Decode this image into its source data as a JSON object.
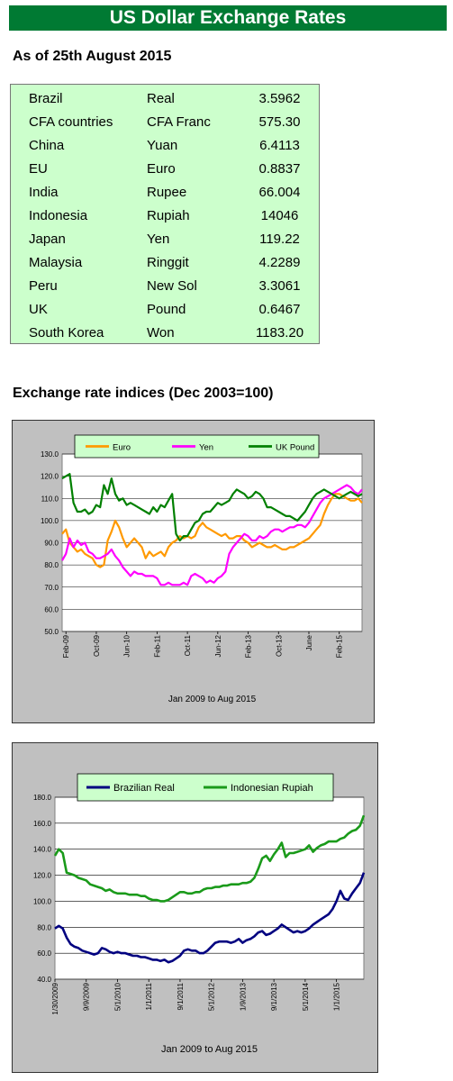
{
  "header": {
    "title": "US Dollar Exchange Rates",
    "as_of": "As of 25th August 2015"
  },
  "rates": [
    {
      "country": "Brazil",
      "currency": "Real",
      "rate": "3.5962"
    },
    {
      "country": "CFA countries",
      "currency": "CFA Franc",
      "rate": "575.30"
    },
    {
      "country": "China",
      "currency": "Yuan",
      "rate": "6.4113"
    },
    {
      "country": "EU",
      "currency": "Euro",
      "rate": "0.8837"
    },
    {
      "country": "India",
      "currency": "Rupee",
      "rate": "66.004"
    },
    {
      "country": "Indonesia",
      "currency": "Rupiah",
      "rate": "14046"
    },
    {
      "country": "Japan",
      "currency": "Yen",
      "rate": "119.22"
    },
    {
      "country": "Malaysia",
      "currency": "Ringgit",
      "rate": "4.2289"
    },
    {
      "country": "Peru",
      "currency": "New Sol",
      "rate": "3.3061"
    },
    {
      "country": "UK",
      "currency": "Pound",
      "rate": "0.6467"
    },
    {
      "country": "South Korea",
      "currency": "Won",
      "rate": "1183.20"
    }
  ],
  "indices_title": "Exchange rate indices (Dec 2003=100)",
  "colors": {
    "title_bg": "#007a33",
    "table_bg": "#ccffcc",
    "panel_bg": "#c0c0c0",
    "euro": "#ff9900",
    "yen": "#ff00ff",
    "uk_pound": "#008000",
    "brazilian_real": "#000080",
    "indonesian_rupiah": "#1a9a1a"
  },
  "chart_data": [
    {
      "type": "line",
      "xlabel": "Jan 2009 to Aug 2015",
      "ylabel": "",
      "ylim": [
        50,
        130
      ],
      "yticks": [
        "130.0",
        "120.0",
        "110.0",
        "100.0",
        "90.0",
        "80.0",
        "70.0",
        "60.0",
        "50.0"
      ],
      "grid": true,
      "legend_position": "top",
      "x_tick_labels": [
        "Feb-09",
        "Oct-09",
        "Jun-10",
        "Feb-11",
        "Oct-11",
        "Jun-12",
        "Feb-13",
        "Oct-13",
        "June",
        "Feb-15"
      ],
      "x_tick_months": [
        1,
        9,
        17,
        25,
        33,
        41,
        49,
        57,
        65,
        73
      ],
      "x_range_months": [
        0,
        79
      ],
      "series": [
        {
          "name": "Euro",
          "color": "#ff9900",
          "x": [
            0,
            1,
            2,
            3,
            4,
            5,
            6,
            7,
            8,
            9,
            10,
            11,
            12,
            13,
            14,
            15,
            16,
            17,
            18,
            19,
            20,
            21,
            22,
            23,
            24,
            25,
            26,
            27,
            28,
            29,
            30,
            31,
            32,
            33,
            34,
            35,
            36,
            37,
            38,
            39,
            40,
            41,
            42,
            43,
            44,
            45,
            46,
            47,
            48,
            49,
            50,
            51,
            52,
            53,
            54,
            55,
            56,
            57,
            58,
            59,
            60,
            61,
            62,
            63,
            64,
            65,
            66,
            67,
            68,
            69,
            70,
            71,
            72,
            73,
            74,
            75,
            76,
            77,
            78,
            79
          ],
          "values": [
            94,
            96,
            90,
            88,
            86,
            87,
            85,
            84,
            83,
            80,
            79,
            80,
            91,
            95,
            100,
            97,
            92,
            88,
            90,
            92,
            90,
            88,
            83,
            86,
            84,
            85,
            86,
            84,
            88,
            90,
            91,
            93,
            92,
            93,
            92,
            93,
            97,
            99,
            97,
            96,
            95,
            94,
            93,
            94,
            92,
            92,
            93,
            93,
            91,
            90,
            88,
            89,
            90,
            89,
            88,
            88,
            89,
            88,
            87,
            87,
            88,
            88,
            89,
            90,
            91,
            92,
            94,
            96,
            98,
            103,
            107,
            110,
            112,
            112,
            111,
            110,
            109,
            109,
            110,
            108
          ]
        },
        {
          "name": "Yen",
          "color": "#ff00ff",
          "x": [
            0,
            1,
            2,
            3,
            4,
            5,
            6,
            7,
            8,
            9,
            10,
            11,
            12,
            13,
            14,
            15,
            16,
            17,
            18,
            19,
            20,
            21,
            22,
            23,
            24,
            25,
            26,
            27,
            28,
            29,
            30,
            31,
            32,
            33,
            34,
            35,
            36,
            37,
            38,
            39,
            40,
            41,
            42,
            43,
            44,
            45,
            46,
            47,
            48,
            49,
            50,
            51,
            52,
            53,
            54,
            55,
            56,
            57,
            58,
            59,
            60,
            61,
            62,
            63,
            64,
            65,
            66,
            67,
            68,
            69,
            70,
            71,
            72,
            73,
            74,
            75,
            76,
            77,
            78,
            79
          ],
          "values": [
            82,
            85,
            92,
            88,
            91,
            89,
            90,
            86,
            85,
            83,
            83,
            84,
            85,
            87,
            84,
            82,
            79,
            77,
            75,
            77,
            76,
            76,
            75,
            75,
            75,
            74,
            71,
            71,
            72,
            71,
            71,
            71,
            72,
            71,
            75,
            76,
            75,
            74,
            72,
            73,
            72,
            74,
            75,
            77,
            85,
            88,
            90,
            92,
            94,
            93,
            91,
            91,
            93,
            92,
            93,
            95,
            96,
            96,
            95,
            96,
            97,
            97,
            98,
            98,
            97,
            99,
            102,
            105,
            108,
            110,
            111,
            112,
            113,
            114,
            115,
            116,
            115,
            113,
            112,
            114
          ]
        },
        {
          "name": "UK Pound",
          "color": "#008000",
          "x": [
            0,
            1,
            2,
            3,
            4,
            5,
            6,
            7,
            8,
            9,
            10,
            11,
            12,
            13,
            14,
            15,
            16,
            17,
            18,
            19,
            20,
            21,
            22,
            23,
            24,
            25,
            26,
            27,
            28,
            29,
            30,
            31,
            32,
            33,
            34,
            35,
            36,
            37,
            38,
            39,
            40,
            41,
            42,
            43,
            44,
            45,
            46,
            47,
            48,
            49,
            50,
            51,
            52,
            53,
            54,
            55,
            56,
            57,
            58,
            59,
            60,
            61,
            62,
            63,
            64,
            65,
            66,
            67,
            68,
            69,
            70,
            71,
            72,
            73,
            74,
            75,
            76,
            77,
            78,
            79
          ],
          "values": [
            119,
            120,
            121,
            108,
            104,
            104,
            105,
            103,
            104,
            107,
            106,
            116,
            112,
            119,
            112,
            109,
            110,
            107,
            108,
            107,
            106,
            105,
            104,
            103,
            106,
            104,
            107,
            106,
            109,
            112,
            94,
            91,
            93,
            93,
            96,
            99,
            100,
            103,
            104,
            104,
            106,
            108,
            107,
            108,
            109,
            112,
            114,
            113,
            112,
            110,
            111,
            113,
            112,
            110,
            106,
            106,
            105,
            104,
            103,
            102,
            102,
            101,
            100,
            102,
            104,
            107,
            110,
            112,
            113,
            114,
            113,
            112,
            111,
            110,
            111,
            112,
            113,
            112,
            111,
            112
          ]
        }
      ]
    },
    {
      "type": "line",
      "xlabel": "Jan 2009 to Aug 2015",
      "ylabel": "",
      "ylim": [
        40,
        180
      ],
      "yticks": [
        "180.0",
        "160.0",
        "140.0",
        "120.0",
        "100.0",
        "80.0",
        "60.0",
        "40.0"
      ],
      "grid": true,
      "legend_position": "top",
      "x_tick_labels": [
        "1/30/2009",
        "9/9/2009",
        "5/1/2010",
        "1/1/2011",
        "9/1/2011",
        "5/1/2012",
        "1/9/2013",
        "9/1/2013",
        "5/1/2014",
        "1/1/2015"
      ],
      "x_tick_months": [
        0,
        8,
        16,
        24,
        32,
        40,
        48,
        56,
        64,
        72
      ],
      "x_range_months": [
        0,
        79
      ],
      "series": [
        {
          "name": "Brazilian Real",
          "color": "#000080",
          "x": [
            0,
            1,
            2,
            3,
            4,
            5,
            6,
            7,
            8,
            9,
            10,
            11,
            12,
            13,
            14,
            15,
            16,
            17,
            18,
            19,
            20,
            21,
            22,
            23,
            24,
            25,
            26,
            27,
            28,
            29,
            30,
            31,
            32,
            33,
            34,
            35,
            36,
            37,
            38,
            39,
            40,
            41,
            42,
            43,
            44,
            45,
            46,
            47,
            48,
            49,
            50,
            51,
            52,
            53,
            54,
            55,
            56,
            57,
            58,
            59,
            60,
            61,
            62,
            63,
            64,
            65,
            66,
            67,
            68,
            69,
            70,
            71,
            72,
            73,
            74,
            75,
            76,
            77,
            78,
            79
          ],
          "values": [
            79,
            81,
            79,
            72,
            67,
            65,
            64,
            62,
            61,
            60,
            59,
            60,
            64,
            63,
            61,
            60,
            61,
            60,
            60,
            59,
            58,
            58,
            57,
            57,
            56,
            55,
            55,
            54,
            55,
            53,
            54,
            56,
            58,
            62,
            63,
            62,
            62,
            60,
            60,
            62,
            65,
            68,
            69,
            69,
            69,
            68,
            69,
            71,
            68,
            70,
            71,
            73,
            76,
            77,
            74,
            75,
            77,
            79,
            82,
            80,
            78,
            76,
            77,
            76,
            77,
            79,
            82,
            84,
            86,
            88,
            90,
            94,
            100,
            108,
            102,
            101,
            106,
            110,
            114,
            122
          ]
        },
        {
          "name": "Indonesian Rupiah",
          "color": "#1a9a1a",
          "x": [
            0,
            1,
            2,
            3,
            4,
            5,
            6,
            7,
            8,
            9,
            10,
            11,
            12,
            13,
            14,
            15,
            16,
            17,
            18,
            19,
            20,
            21,
            22,
            23,
            24,
            25,
            26,
            27,
            28,
            29,
            30,
            31,
            32,
            33,
            34,
            35,
            36,
            37,
            38,
            39,
            40,
            41,
            42,
            43,
            44,
            45,
            46,
            47,
            48,
            49,
            50,
            51,
            52,
            53,
            54,
            55,
            56,
            57,
            58,
            59,
            60,
            61,
            62,
            63,
            64,
            65,
            66,
            67,
            68,
            69,
            70,
            71,
            72,
            73,
            74,
            75,
            76,
            77,
            78,
            79
          ],
          "values": [
            135,
            140,
            137,
            122,
            121,
            120,
            118,
            117,
            116,
            113,
            112,
            111,
            110,
            108,
            109,
            107,
            106,
            106,
            106,
            105,
            105,
            105,
            104,
            104,
            102,
            101,
            101,
            100,
            100,
            101,
            103,
            105,
            107,
            107,
            106,
            106,
            107,
            107,
            109,
            110,
            110,
            111,
            111,
            112,
            112,
            113,
            113,
            113,
            114,
            114,
            115,
            118,
            125,
            133,
            135,
            131,
            136,
            140,
            145,
            134,
            137,
            137,
            138,
            139,
            140,
            143,
            138,
            141,
            143,
            144,
            146,
            146,
            146,
            148,
            149,
            152,
            154,
            155,
            158,
            166
          ]
        }
      ]
    }
  ]
}
